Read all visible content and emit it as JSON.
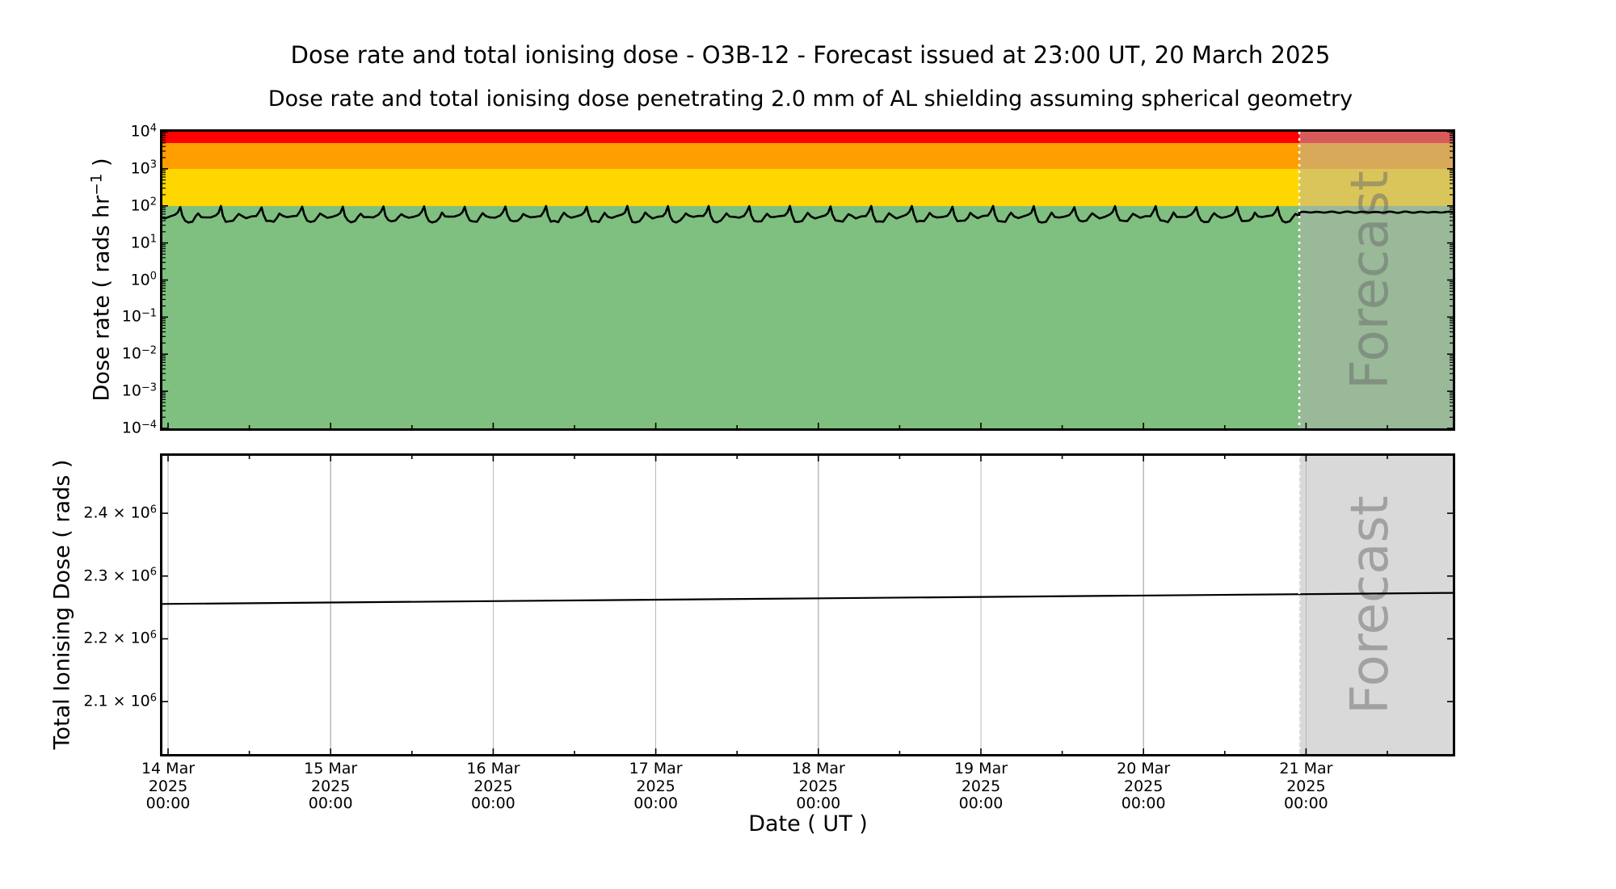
{
  "figure": {
    "title": "Dose rate and total ionising dose - O3B-12 - Forecast issued at 23:00 UT, 20 March 2025",
    "subtitle": "Dose rate and total ionising dose penetrating 2.0 mm of AL shielding assuming spherical geometry",
    "watermark": "Forecast"
  },
  "x_axis": {
    "label": "Date ( UT )",
    "ticks": [
      {
        "date": "14 Mar",
        "year": "2025",
        "time": "00:00"
      },
      {
        "date": "15 Mar",
        "year": "2025",
        "time": "00:00"
      },
      {
        "date": "16 Mar",
        "year": "2025",
        "time": "00:00"
      },
      {
        "date": "17 Mar",
        "year": "2025",
        "time": "00:00"
      },
      {
        "date": "18 Mar",
        "year": "2025",
        "time": "00:00"
      },
      {
        "date": "19 Mar",
        "year": "2025",
        "time": "00:00"
      },
      {
        "date": "20 Mar",
        "year": "2025",
        "time": "00:00"
      },
      {
        "date": "21 Mar",
        "year": "2025",
        "time": "00:00"
      }
    ],
    "minor_tick_interval_days": 0.5,
    "axis_start_day": -0.0348,
    "axis_end_day": 7.9026,
    "forecast_start_label": "20 Mar 2025 23:00 UT",
    "forecast_start_day_fraction": 6.9583
  },
  "chart_data": [
    {
      "id": "dose-rate-panel",
      "type": "line",
      "y_scale": "log10",
      "ylabel": {
        "prefix": "Dose rate ( rads hr",
        "sup_exponent": "−1",
        "suffix": " )"
      },
      "y_tick_base": "10",
      "y_tick_exponents": [
        "4",
        "3",
        "2",
        "1",
        "0",
        "−1",
        "−2",
        "−3",
        "−4"
      ],
      "ylim_rads_per_hr": [
        0.0001,
        10000
      ],
      "threshold_bands_rads_per_hr": [
        {
          "level": "red",
          "from": 5000,
          "to": 10000,
          "color": "#FF0000"
        },
        {
          "level": "orange",
          "from": 1000,
          "to": 5000,
          "color": "#FF9E00"
        },
        {
          "level": "yellow",
          "from": 100,
          "to": 1000,
          "color": "#FFD700"
        },
        {
          "level": "green",
          "from": 0.0001,
          "to": 100,
          "color": "#7FBF7F"
        }
      ],
      "series": {
        "name": "dose-rate",
        "color": "#000000",
        "shape": "quasi-periodic sawtooth from orbital passes, flat in forecast window",
        "period_days": 0.25,
        "peak_phase_days": 0.075,
        "peak_rads_per_hr": 100,
        "valley_rads_per_hr": 38,
        "shoulder_rads_per_hr": 63,
        "forecast_level_rads_per_hr": 70,
        "forecast_level_log10": 1.83,
        "pattern_log10": [
          [
            0.0,
            2.0
          ],
          [
            0.05,
            1.75
          ],
          [
            0.12,
            1.595
          ],
          [
            0.2,
            1.575
          ],
          [
            0.3,
            1.585
          ],
          [
            0.38,
            1.7
          ],
          [
            0.44,
            1.8
          ],
          [
            0.52,
            1.715
          ],
          [
            0.62,
            1.685
          ],
          [
            0.75,
            1.705
          ],
          [
            0.87,
            1.745
          ],
          [
            0.94,
            1.83
          ]
        ]
      }
    },
    {
      "id": "total-dose-panel",
      "type": "line",
      "y_scale": "linear",
      "ylabel": "Total Ionising Dose ( rads )",
      "y_ticks": [
        {
          "text": "2.4 × 10",
          "exponent": "6",
          "value": 2400000
        },
        {
          "text": "2.3 × 10",
          "exponent": "6",
          "value": 2300000
        },
        {
          "text": "2.2 × 10",
          "exponent": "6",
          "value": 2200000
        },
        {
          "text": "2.1 × 10",
          "exponent": "6",
          "value": 2100000
        }
      ],
      "ylim_rads": [
        2016500,
        2491500
      ],
      "grid_vertical": true,
      "series": {
        "name": "total-ionising-dose",
        "color": "#000000",
        "shape": "nearly linear slow accumulation",
        "start_rads": 2255600,
        "end_rads": 2273200
      }
    }
  ],
  "style_colors": {
    "frame": "#000000",
    "grid": "#BBBBBB",
    "forecast_overlay": "rgba(180,180,180,0.5)",
    "forecast_boundary_dots": "#FFFFFF",
    "watermark_text": "rgba(105,105,105,0.5)"
  }
}
